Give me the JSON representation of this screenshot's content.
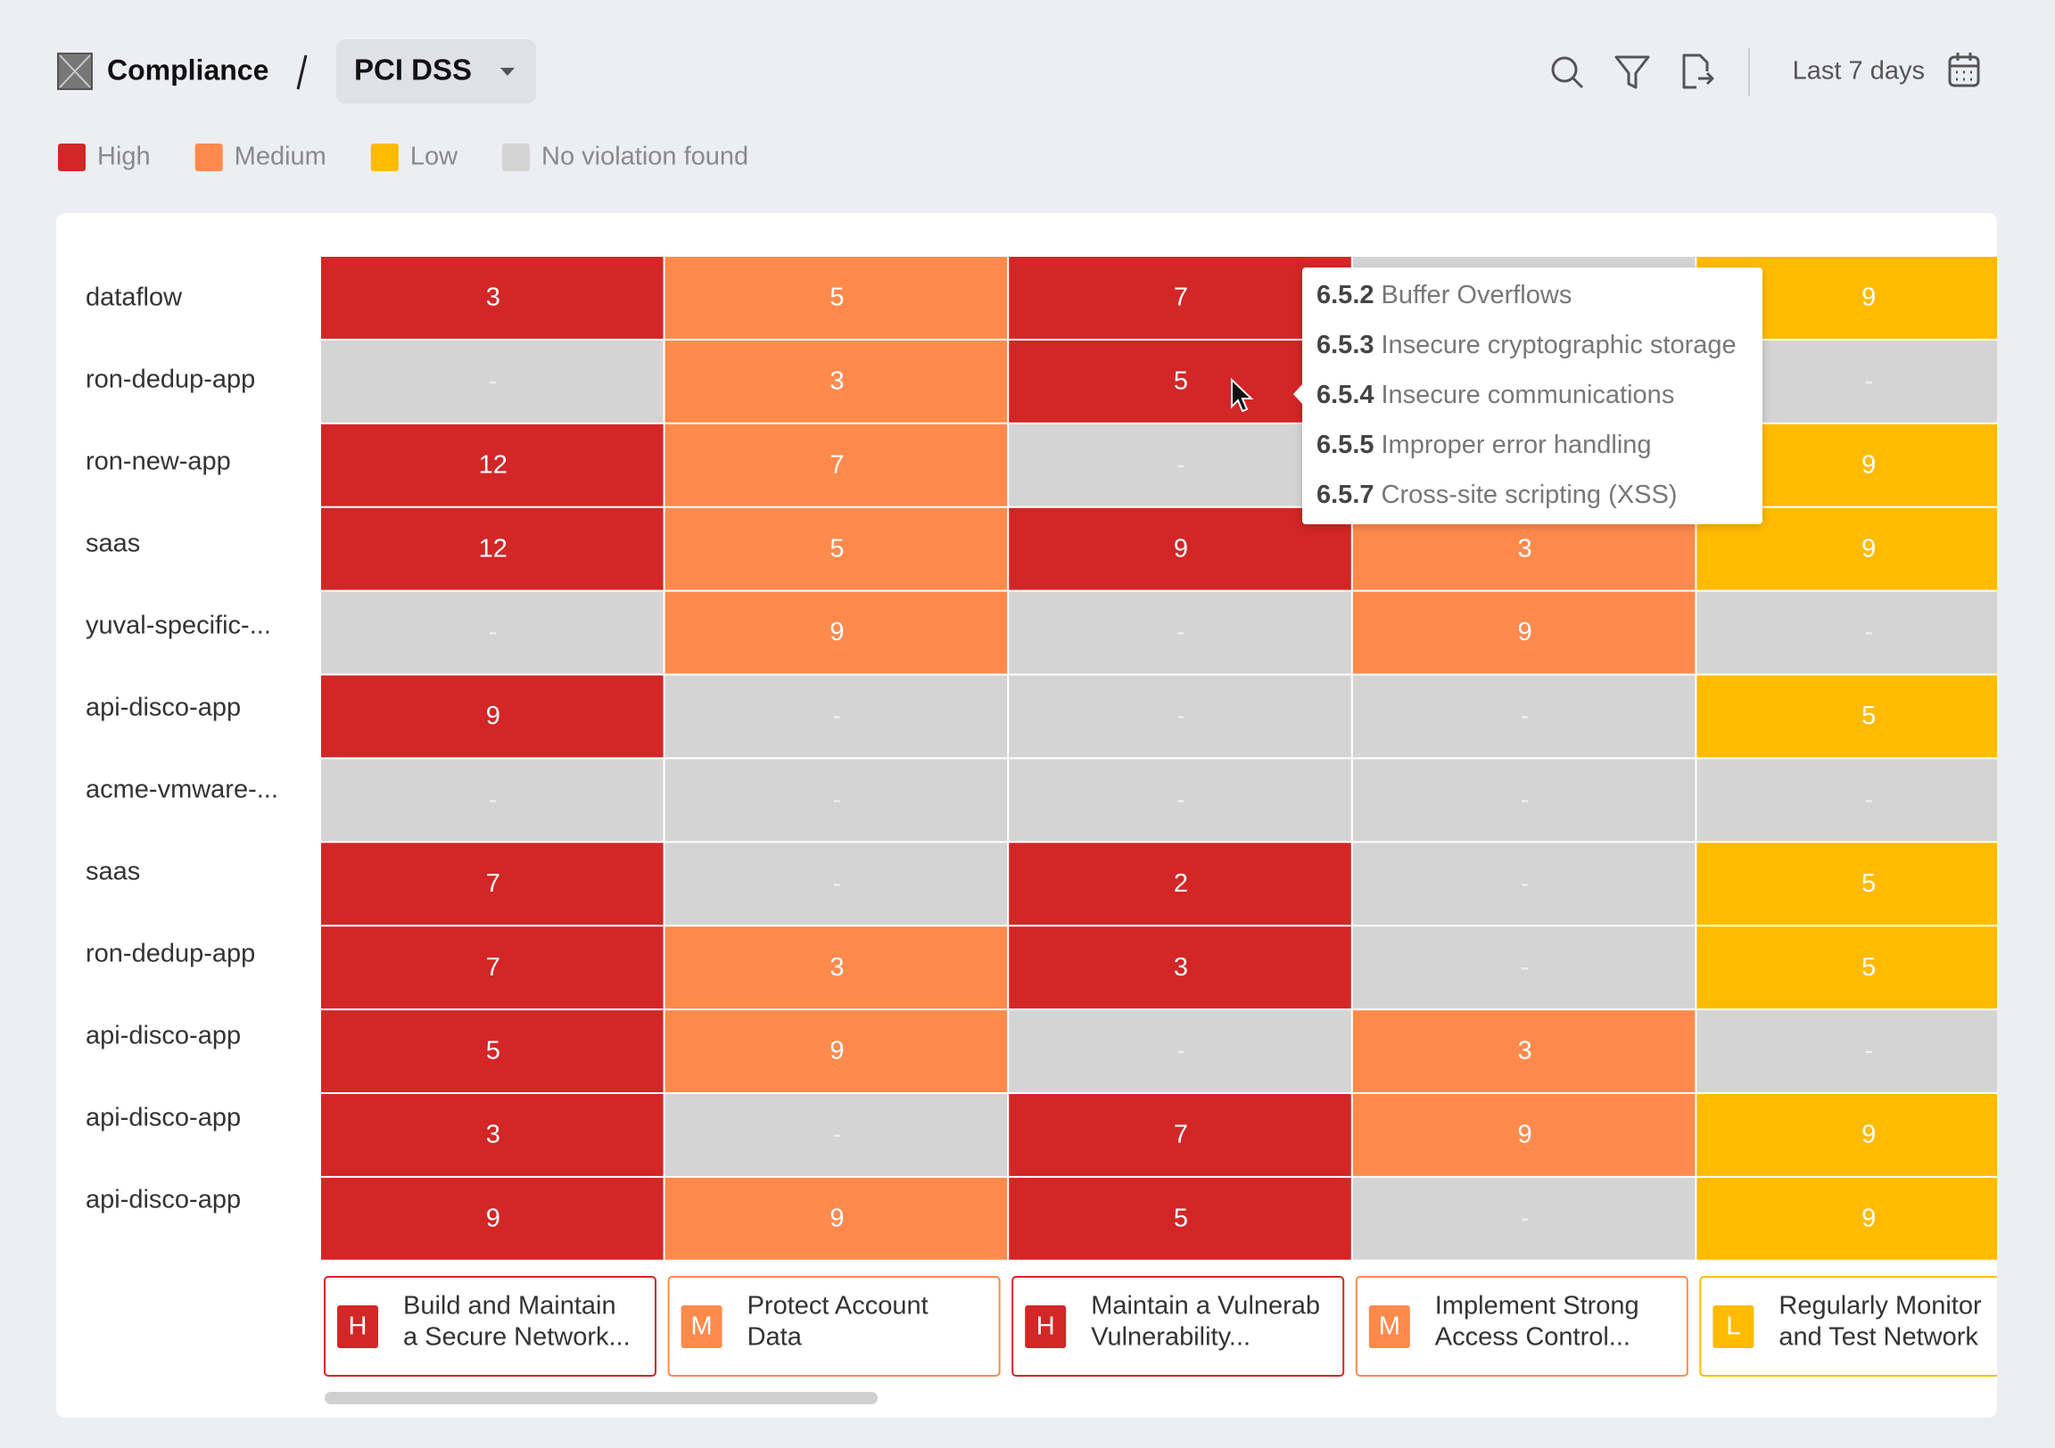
{
  "header": {
    "section": "Compliance",
    "framework": "PCI DSS",
    "date_range": "Last 7 days"
  },
  "legend": [
    {
      "label": "High",
      "color": "#d32626"
    },
    {
      "label": "Medium",
      "color": "#ff8a4c"
    },
    {
      "label": "Low",
      "color": "#ffbb00"
    },
    {
      "label": "No violation found",
      "color": "#d4d4d4"
    }
  ],
  "rows": [
    {
      "name": "dataflow",
      "values": [
        3,
        5,
        7,
        "-",
        9
      ]
    },
    {
      "name": "ron-dedup-app",
      "values": [
        "-",
        3,
        5,
        null,
        "-"
      ]
    },
    {
      "name": "ron-new-app",
      "values": [
        12,
        7,
        "-",
        null,
        9
      ]
    },
    {
      "name": "saas",
      "values": [
        12,
        5,
        9,
        3,
        9
      ]
    },
    {
      "name": "yuval-specific-...",
      "values": [
        "-",
        9,
        "-",
        9,
        "-"
      ]
    },
    {
      "name": "api-disco-app",
      "values": [
        9,
        "-",
        "-",
        "-",
        5
      ]
    },
    {
      "name": "acme-vmware-...",
      "values": [
        "-",
        "-",
        "-",
        "-",
        "-"
      ]
    },
    {
      "name": "saas",
      "values": [
        7,
        "-",
        2,
        "-",
        5
      ]
    },
    {
      "name": "ron-dedup-app",
      "values": [
        7,
        3,
        3,
        "-",
        5
      ]
    },
    {
      "name": "api-disco-app",
      "values": [
        5,
        9,
        "-",
        3,
        "-"
      ]
    },
    {
      "name": "api-disco-app",
      "values": [
        3,
        "-",
        7,
        9,
        9
      ]
    },
    {
      "name": "api-disco-app",
      "values": [
        9,
        9,
        5,
        "-",
        9
      ]
    }
  ],
  "columns": [
    {
      "severity": "H",
      "lines": [
        "Build and Maintain",
        "a Secure Network..."
      ]
    },
    {
      "severity": "M",
      "lines": [
        "Protect Account",
        "Data"
      ]
    },
    {
      "severity": "H",
      "lines": [
        "Maintain a Vulnerab",
        "Vulnerability..."
      ]
    },
    {
      "severity": "M",
      "lines": [
        "Implement Strong",
        "Access Control..."
      ]
    },
    {
      "severity": "L",
      "lines": [
        "Regularly Monitor",
        "and Test Network"
      ]
    }
  ],
  "tooltip": {
    "items": [
      {
        "code": "6.5.2",
        "text": "Buffer Overflows"
      },
      {
        "code": "6.5.3",
        "text": "Insecure cryptographic storage"
      },
      {
        "code": "6.5.4",
        "text": "Insecure communications"
      },
      {
        "code": "6.5.5",
        "text": "Improper error handling"
      },
      {
        "code": "6.5.7",
        "text": "Cross-site scripting (XSS)"
      }
    ]
  }
}
